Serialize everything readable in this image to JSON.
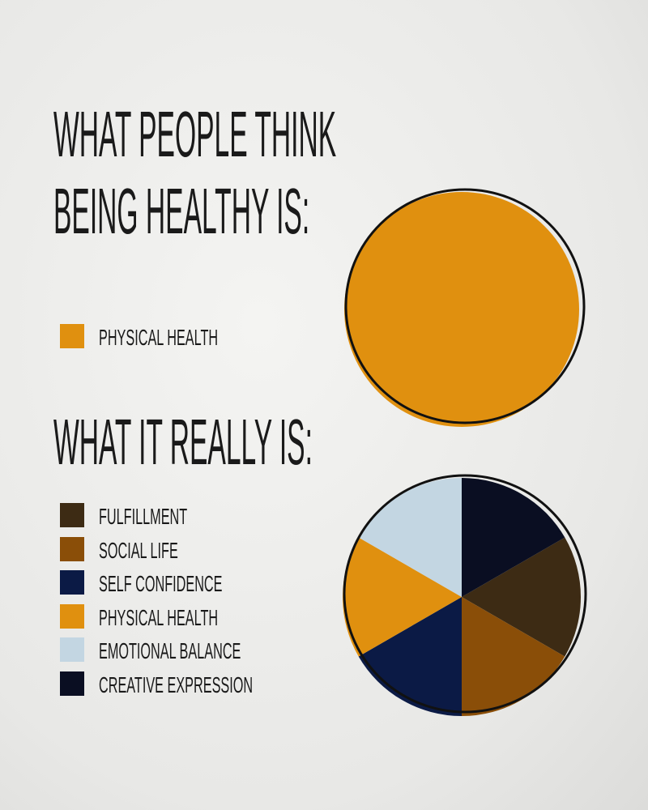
{
  "chart_data": [
    {
      "type": "pie",
      "title": "WHAT PEOPLE THINK BEING HEALTHY IS:",
      "categories": [
        "PHYSICAL HEALTH"
      ],
      "values": [
        100
      ],
      "colors": [
        "#e0900f"
      ]
    },
    {
      "type": "pie",
      "title": "WHAT IT REALLY IS:",
      "categories": [
        "FULFILLMENT",
        "SOCIAL LIFE",
        "SELF CONFIDENCE",
        "PHYSICAL HEALTH",
        "EMOTIONAL BALANCE",
        "CREATIVE EXPRESSION"
      ],
      "values": [
        16.7,
        16.7,
        16.7,
        16.7,
        16.7,
        16.7
      ],
      "colors": [
        "#3d2b14",
        "#8a4e08",
        "#0b1a45",
        "#e0900f",
        "#c3d6e2",
        "#0a0e22"
      ]
    }
  ]
}
